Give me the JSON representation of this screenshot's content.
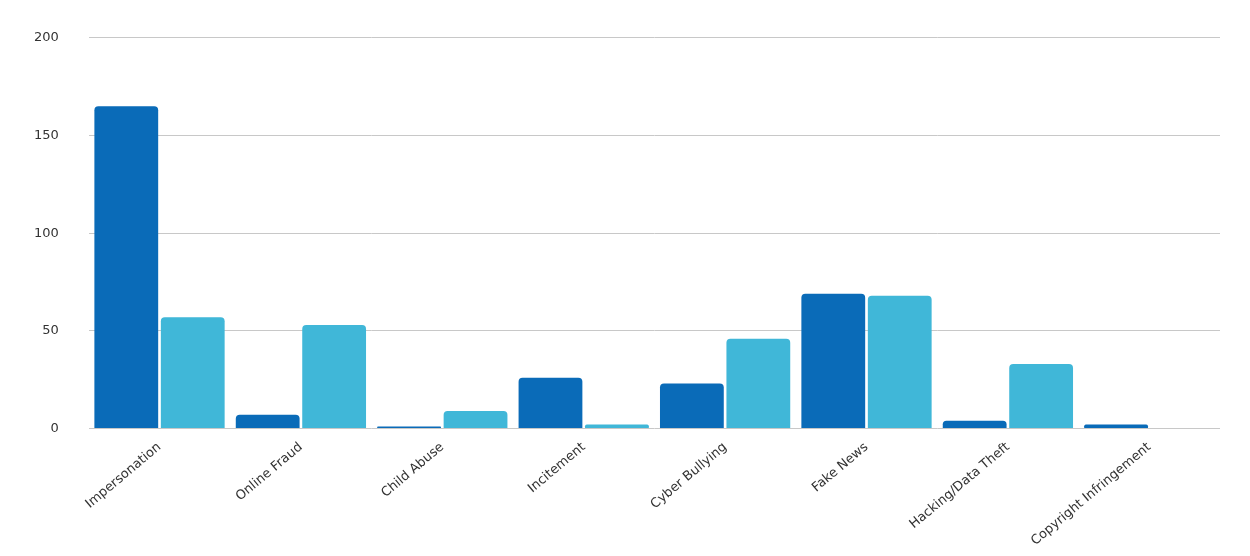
{
  "chart_data": {
    "type": "bar",
    "categories": [
      "Impersonation",
      "Online Fraud",
      "Child Abuse",
      "Incitement",
      "Cyber Bullying",
      "Fake News",
      "Hacking/Data Theft",
      "Copyright Infringement"
    ],
    "series": [
      {
        "color": "#0a6bb8",
        "values": [
          165,
          7,
          1,
          26,
          23,
          69,
          4,
          2
        ]
      },
      {
        "color": "#40b7d8",
        "values": [
          57,
          53,
          9,
          2,
          46,
          68,
          33,
          0
        ]
      }
    ],
    "ylim": [
      0,
      200
    ],
    "yticks": [
      0,
      50,
      100,
      150,
      200
    ],
    "grid": true
  }
}
